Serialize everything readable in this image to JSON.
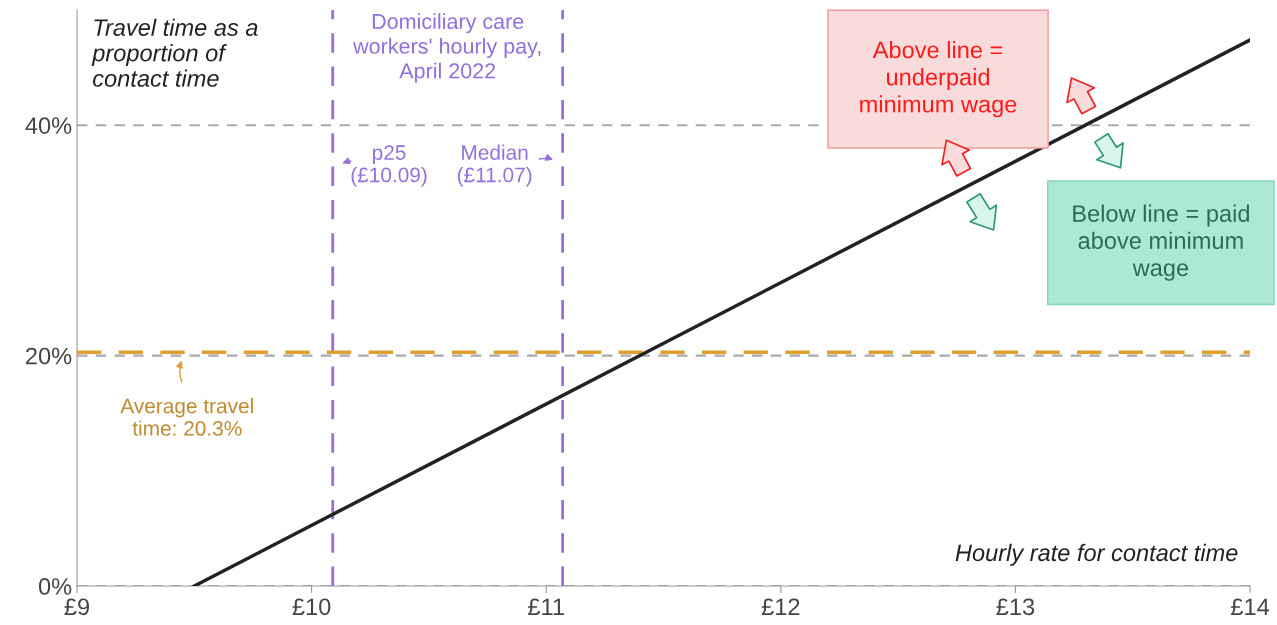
{
  "chart_data": {
    "type": "line",
    "x": [
      9.5,
      14
    ],
    "series": [
      {
        "color": "#222222",
        "values": [
          0,
          47.4
        ]
      }
    ],
    "xlim": [
      9,
      14
    ],
    "xticks": [
      {
        "value": 9,
        "label": "£9"
      },
      {
        "value": 10,
        "label": "£10"
      },
      {
        "value": 11,
        "label": "£11"
      },
      {
        "value": 12,
        "label": "£12"
      },
      {
        "value": 13,
        "label": "£13"
      },
      {
        "value": 14,
        "label": "£14"
      }
    ],
    "ylim": [
      0,
      50
    ],
    "yticks": [
      {
        "value": 0,
        "label": "0%"
      },
      {
        "value": 20,
        "label": "20%"
      },
      {
        "value": 40,
        "label": "40%"
      }
    ],
    "ylabel": "Travel time as a\nproportion of\ncontact time",
    "xlabel": "Hourly rate for contact time",
    "grid": "y",
    "line_style": "solid",
    "marker": "none",
    "ref_lines": [
      {
        "axis": "x",
        "value": 10.09,
        "label": "p25\n(£10.09)",
        "color": "#9370db",
        "line_style": "dashed"
      },
      {
        "axis": "x",
        "value": 11.07,
        "label": "Median\n(£11.07)",
        "color": "#9370db",
        "line_style": "dashed"
      },
      {
        "axis": "y",
        "value": 20.3,
        "label": "Average travel\ntime: 20.3%",
        "color": "#e0a030",
        "line_style": "dashed"
      }
    ],
    "annotations": [
      "Domiciliary care\nworkers' hourly pay,\nApril 2022",
      "Above line =\nunderpaid\nminimum wage",
      "Below line = paid\nabove minimum\nwage"
    ]
  }
}
